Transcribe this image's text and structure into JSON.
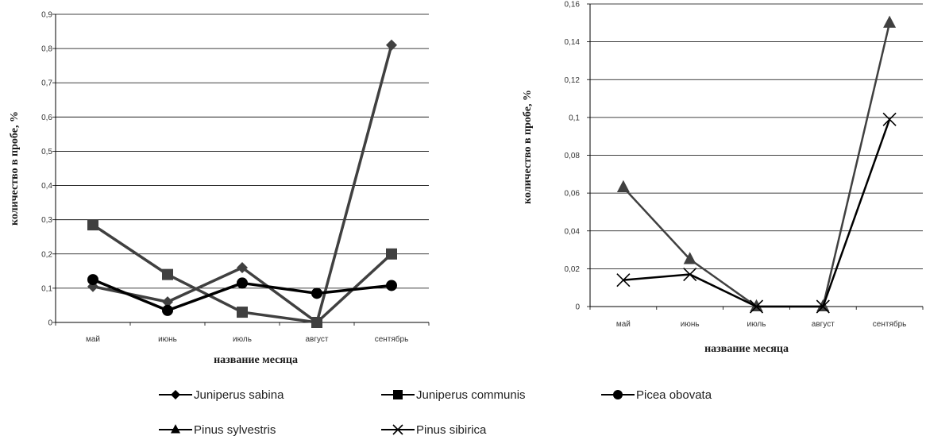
{
  "chart_data": [
    {
      "type": "line",
      "categories": [
        "май",
        "июнь",
        "июль",
        "август",
        "сентябрь"
      ],
      "xlabel": "название месяца",
      "ylabel": "количество в пробе, %",
      "ylim": [
        0,
        0.9
      ],
      "yticks": [
        0,
        0.1,
        0.2,
        0.3,
        0.4,
        0.5,
        0.6,
        0.7,
        0.8,
        0.9
      ],
      "ytick_labels": [
        "0",
        "0,1",
        "0,2",
        "0,3",
        "0,4",
        "0,5",
        "0,6",
        "0,7",
        "0,8",
        "0,9"
      ],
      "grid": "horizontal",
      "series": [
        {
          "name": "Juniperus sabina",
          "marker": "diamond",
          "color": "#404040",
          "values": [
            0.105,
            0.06,
            0.16,
            0.0,
            0.81
          ]
        },
        {
          "name": "Juniperus communis",
          "marker": "square",
          "color": "#404040",
          "values": [
            0.285,
            0.14,
            0.03,
            0.0,
            0.2
          ]
        },
        {
          "name": "Picea obovata",
          "marker": "circle",
          "color": "#000000",
          "values": [
            0.125,
            0.035,
            0.115,
            0.085,
            0.108
          ]
        }
      ]
    },
    {
      "type": "line",
      "categories": [
        "май",
        "июнь",
        "июль",
        "август",
        "сентябрь"
      ],
      "xlabel": "название месяца",
      "ylabel": "количество в пробе, %",
      "ylim": [
        0,
        0.16
      ],
      "yticks": [
        0,
        0.02,
        0.04,
        0.06,
        0.08,
        0.1,
        0.12,
        0.14,
        0.16
      ],
      "ytick_labels": [
        "0",
        "0,02",
        "0,04",
        "0,06",
        "0,08",
        "0,1",
        "0,12",
        "0,14",
        "0,16"
      ],
      "grid": "horizontal",
      "series": [
        {
          "name": "Pinus sylvestris",
          "marker": "triangle",
          "color": "#404040",
          "values": [
            0.063,
            0.025,
            0.0,
            0.0,
            0.15
          ]
        },
        {
          "name": "Pinus sibirica",
          "marker": "x",
          "color": "#000000",
          "values": [
            0.014,
            0.017,
            0.0,
            0.0,
            0.099
          ]
        }
      ]
    }
  ],
  "legend": [
    {
      "name": "Juniperus sabina",
      "marker": "diamond",
      "color": "#000000"
    },
    {
      "name": "Juniperus communis",
      "marker": "square",
      "color": "#000000"
    },
    {
      "name": "Picea obovata",
      "marker": "circle",
      "color": "#000000"
    },
    {
      "name": "Pinus sylvestris",
      "marker": "triangle",
      "color": "#000000"
    },
    {
      "name": "Pinus sibirica",
      "marker": "x",
      "color": "#000000"
    }
  ]
}
